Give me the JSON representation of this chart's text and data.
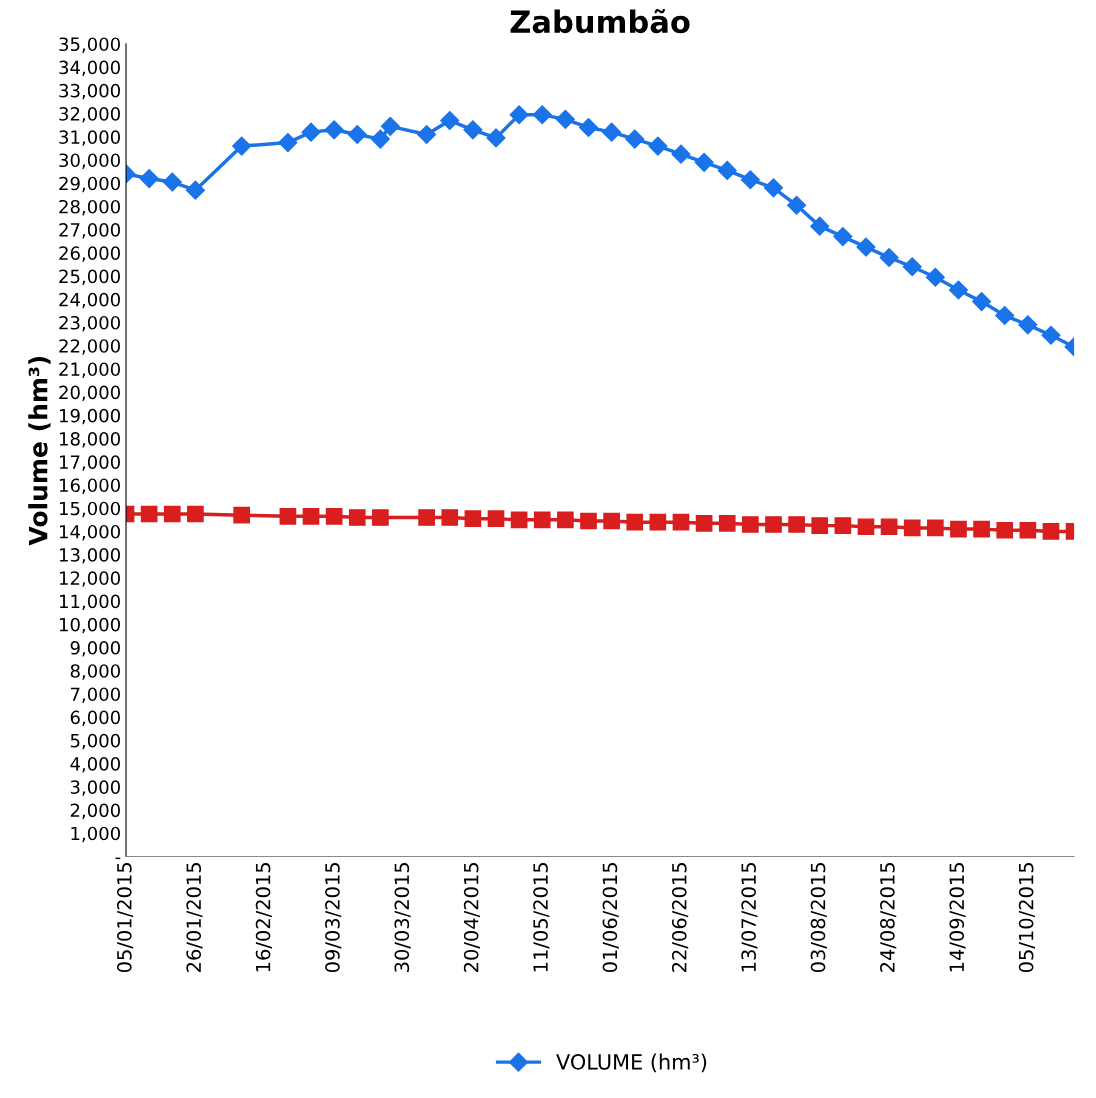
{
  "chart_data": {
    "type": "line",
    "title": "Zabumbão",
    "ylabel": "Volume (hm³)",
    "xlim": [
      "2015-01-05",
      "2015-10-19"
    ],
    "xticks": [
      {
        "value": "2015-01-05",
        "label": "05/01/2015"
      },
      {
        "value": "2015-01-26",
        "label": "26/01/2015"
      },
      {
        "value": "2015-02-16",
        "label": "16/02/2015"
      },
      {
        "value": "2015-03-09",
        "label": "09/03/2015"
      },
      {
        "value": "2015-03-30",
        "label": "30/03/2015"
      },
      {
        "value": "2015-04-20",
        "label": "20/04/2015"
      },
      {
        "value": "2015-05-11",
        "label": "11/05/2015"
      },
      {
        "value": "2015-06-01",
        "label": "01/06/2015"
      },
      {
        "value": "2015-06-22",
        "label": "22/06/2015"
      },
      {
        "value": "2015-07-13",
        "label": "13/07/2015"
      },
      {
        "value": "2015-08-03",
        "label": "03/08/2015"
      },
      {
        "value": "2015-08-24",
        "label": "24/08/2015"
      },
      {
        "value": "2015-09-14",
        "label": "14/09/2015"
      },
      {
        "value": "2015-10-05",
        "label": "05/10/2015"
      }
    ],
    "ylim": [
      0,
      35000
    ],
    "yticks": [
      {
        "value": 0,
        "label": "-"
      },
      {
        "value": 1000,
        "label": "1,000"
      },
      {
        "value": 2000,
        "label": "2,000"
      },
      {
        "value": 3000,
        "label": "3,000"
      },
      {
        "value": 4000,
        "label": "4,000"
      },
      {
        "value": 5000,
        "label": "5,000"
      },
      {
        "value": 6000,
        "label": "6,000"
      },
      {
        "value": 7000,
        "label": "7,000"
      },
      {
        "value": 8000,
        "label": "8,000"
      },
      {
        "value": 9000,
        "label": "9,000"
      },
      {
        "value": 10000,
        "label": "10,000"
      },
      {
        "value": 11000,
        "label": "11,000"
      },
      {
        "value": 12000,
        "label": "12,000"
      },
      {
        "value": 13000,
        "label": "13,000"
      },
      {
        "value": 14000,
        "label": "14,000"
      },
      {
        "value": 15000,
        "label": "15,000"
      },
      {
        "value": 16000,
        "label": "16,000"
      },
      {
        "value": 17000,
        "label": "17,000"
      },
      {
        "value": 18000,
        "label": "18,000"
      },
      {
        "value": 19000,
        "label": "19,000"
      },
      {
        "value": 20000,
        "label": "20,000"
      },
      {
        "value": 21000,
        "label": "21,000"
      },
      {
        "value": 22000,
        "label": "22,000"
      },
      {
        "value": 23000,
        "label": "23,000"
      },
      {
        "value": 24000,
        "label": "24,000"
      },
      {
        "value": 25000,
        "label": "25,000"
      },
      {
        "value": 26000,
        "label": "26,000"
      },
      {
        "value": 27000,
        "label": "27,000"
      },
      {
        "value": 28000,
        "label": "28,000"
      },
      {
        "value": 29000,
        "label": "29,000"
      },
      {
        "value": 30000,
        "label": "30,000"
      },
      {
        "value": 31000,
        "label": "31,000"
      },
      {
        "value": 32000,
        "label": "32,000"
      },
      {
        "value": 33000,
        "label": "33,000"
      },
      {
        "value": 34000,
        "label": "34,000"
      },
      {
        "value": 35000,
        "label": "35,000"
      }
    ],
    "grid": false,
    "legend": "bottom",
    "series": [
      {
        "name": "VOLUME (hm³)",
        "color": "#1a73e8",
        "marker": "diamond",
        "line_style": "solid",
        "x": [
          "2015-01-05",
          "2015-01-12",
          "2015-01-19",
          "2015-01-26",
          "2015-02-09",
          "2015-02-23",
          "2015-03-02",
          "2015-03-09",
          "2015-03-16",
          "2015-03-23",
          "2015-03-26",
          "2015-04-06",
          "2015-04-13",
          "2015-04-20",
          "2015-04-27",
          "2015-05-04",
          "2015-05-11",
          "2015-05-18",
          "2015-05-25",
          "2015-06-01",
          "2015-06-08",
          "2015-06-15",
          "2015-06-22",
          "2015-06-29",
          "2015-07-06",
          "2015-07-13",
          "2015-07-20",
          "2015-07-27",
          "2015-08-03",
          "2015-08-10",
          "2015-08-17",
          "2015-08-24",
          "2015-08-31",
          "2015-09-07",
          "2015-09-14",
          "2015-09-21",
          "2015-09-28",
          "2015-10-05",
          "2015-10-12",
          "2015-10-19"
        ],
        "values": [
          29400,
          29200,
          29050,
          28700,
          30600,
          30750,
          31200,
          31300,
          31100,
          30900,
          31450,
          31100,
          31700,
          31300,
          30950,
          31950,
          31950,
          31750,
          31400,
          31200,
          30900,
          30600,
          30250,
          29900,
          29550,
          29150,
          28800,
          28050,
          27150,
          26700,
          26250,
          25800,
          25400,
          24950,
          24400,
          23900,
          23300,
          22900,
          22450,
          21950
        ]
      },
      {
        "color": "#d81e1e",
        "marker": "square",
        "line_style": "solid",
        "x": [
          "2015-01-05",
          "2015-01-12",
          "2015-01-19",
          "2015-01-26",
          "2015-02-09",
          "2015-02-23",
          "2015-03-02",
          "2015-03-09",
          "2015-03-16",
          "2015-03-23",
          "2015-04-06",
          "2015-04-13",
          "2015-04-20",
          "2015-04-27",
          "2015-05-04",
          "2015-05-11",
          "2015-05-18",
          "2015-05-25",
          "2015-06-01",
          "2015-06-08",
          "2015-06-15",
          "2015-06-22",
          "2015-06-29",
          "2015-07-06",
          "2015-07-13",
          "2015-07-20",
          "2015-07-27",
          "2015-08-03",
          "2015-08-10",
          "2015-08-17",
          "2015-08-24",
          "2015-08-31",
          "2015-09-07",
          "2015-09-14",
          "2015-09-21",
          "2015-09-28",
          "2015-10-05",
          "2015-10-12",
          "2015-10-19"
        ],
        "values": [
          14750,
          14750,
          14750,
          14750,
          14700,
          14650,
          14650,
          14650,
          14600,
          14600,
          14600,
          14600,
          14550,
          14550,
          14500,
          14500,
          14500,
          14450,
          14450,
          14400,
          14400,
          14400,
          14350,
          14350,
          14300,
          14300,
          14300,
          14250,
          14250,
          14200,
          14200,
          14150,
          14150,
          14100,
          14100,
          14050,
          14050,
          14000,
          14000
        ]
      }
    ]
  }
}
